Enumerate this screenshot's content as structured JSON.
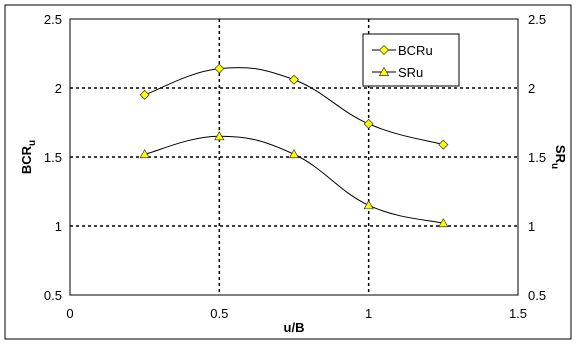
{
  "chart_data": {
    "type": "line",
    "x": [
      0.25,
      0.5,
      0.75,
      1.0,
      1.25
    ],
    "series": [
      {
        "name": "BCRu",
        "values": [
          1.95,
          2.14,
          2.06,
          1.74,
          1.59
        ],
        "marker": "diamond",
        "color": "#ffff00"
      },
      {
        "name": "SRu",
        "values": [
          1.52,
          1.65,
          1.52,
          1.15,
          1.02
        ],
        "marker": "triangle",
        "color": "#ffff00"
      }
    ],
    "xlabel": "u/B",
    "ylabel": {
      "main": "BCR",
      "sub": "u"
    },
    "y2label": {
      "main": "SR",
      "sub": "u"
    },
    "xlim": [
      0,
      1.5
    ],
    "ylim": [
      0.5,
      2.5
    ],
    "xticks": [
      "0",
      "0.5",
      "1",
      "1.5"
    ],
    "yticks": [
      "0.5",
      "1",
      "1.5",
      "2",
      "2.5"
    ],
    "y2ticks": [
      "0.5",
      "1",
      "1.5",
      "2",
      "2.5"
    ],
    "grid": true,
    "legend_position": "top-right",
    "colors": {
      "marker_fill": "#ffff00",
      "line": "#000000",
      "grid": "#000000"
    }
  }
}
